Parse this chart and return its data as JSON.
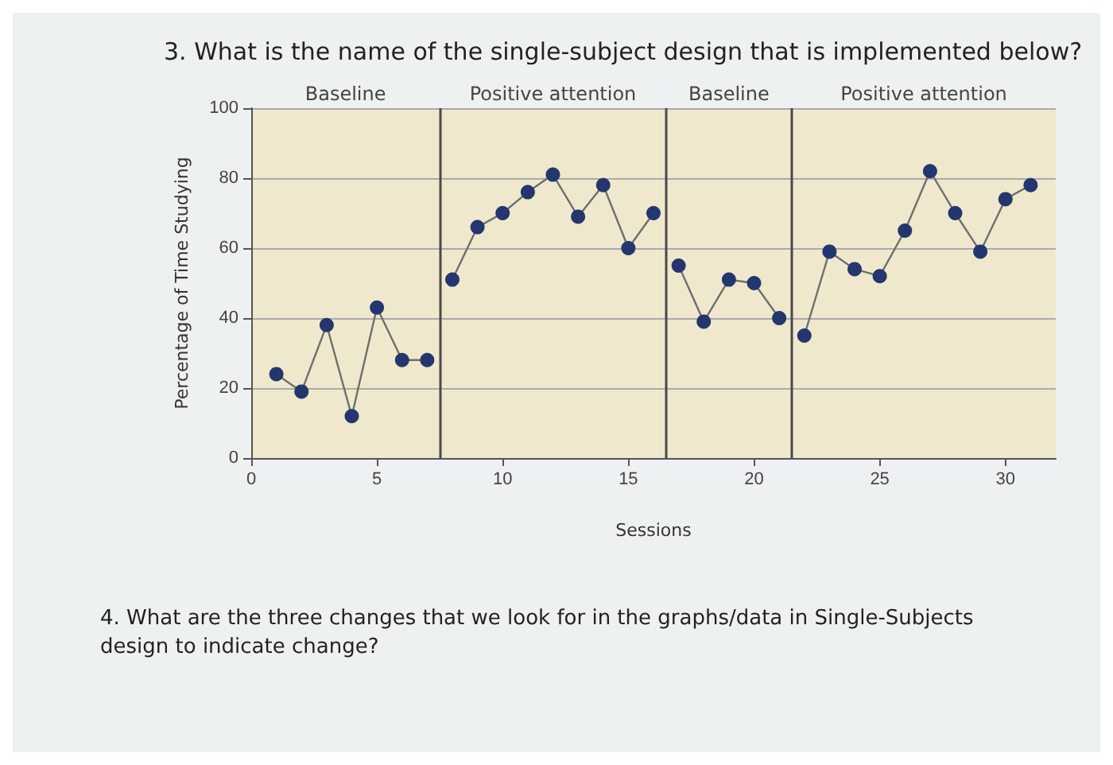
{
  "chart_data": {
    "type": "line",
    "title": "3. What is the name of the single-subject design that is implemented below?",
    "xlabel": "Sessions",
    "ylabel": "Percentage of Time Studying",
    "annotations": [
      "4. What are the three changes that we look for in the graphs/data in Single-Subjects design to indicate change?"
    ],
    "series": [
      {
        "color": "#24366e",
        "x": [
          1,
          2,
          3,
          4,
          5,
          6,
          7
        ],
        "values": [
          24,
          19,
          38,
          12,
          43,
          28,
          28
        ]
      },
      {
        "color": "#24366e",
        "x": [
          8,
          9,
          10,
          11,
          12,
          13,
          14,
          15,
          16
        ],
        "values": [
          51,
          66,
          70,
          76,
          81,
          69,
          78,
          60,
          70
        ]
      },
      {
        "color": "#24366e",
        "x": [
          17,
          18,
          19,
          20,
          21
        ],
        "values": [
          55,
          39,
          51,
          50,
          40
        ]
      },
      {
        "color": "#24366e",
        "x": [
          22,
          23,
          24,
          25,
          26,
          27,
          28,
          29,
          30,
          31
        ],
        "values": [
          35,
          59,
          54,
          52,
          65,
          82,
          70,
          59,
          74,
          78
        ]
      }
    ],
    "bands": [
      {
        "axis": "x",
        "from": 0,
        "to": 7.5,
        "label": "Baseline",
        "color": "#efe8cc"
      },
      {
        "axis": "x",
        "from": 7.5,
        "to": 16.5,
        "label": "Positive attention",
        "color": "#efe8cc"
      },
      {
        "axis": "x",
        "from": 16.5,
        "to": 21.5,
        "label": "Baseline",
        "color": "#efe8cc"
      },
      {
        "axis": "x",
        "from": 21.5,
        "to": 32,
        "label": "Positive attention",
        "color": "#efe8cc"
      }
    ],
    "ref_lines": [
      {
        "axis": "x",
        "value": 7.5,
        "color": "#4a4a4a"
      },
      {
        "axis": "x",
        "value": 16.5,
        "color": "#4a4a4a"
      },
      {
        "axis": "x",
        "value": 21.5,
        "color": "#4a4a4a"
      }
    ],
    "xlim": [
      0,
      32
    ],
    "xticks": [
      0,
      5,
      10,
      15,
      20,
      25,
      30
    ],
    "ylim": [
      0,
      100
    ],
    "yticks": [
      0,
      20,
      40,
      60,
      80,
      100
    ],
    "grid": "y",
    "marker": "circle",
    "line_style": "solid"
  }
}
